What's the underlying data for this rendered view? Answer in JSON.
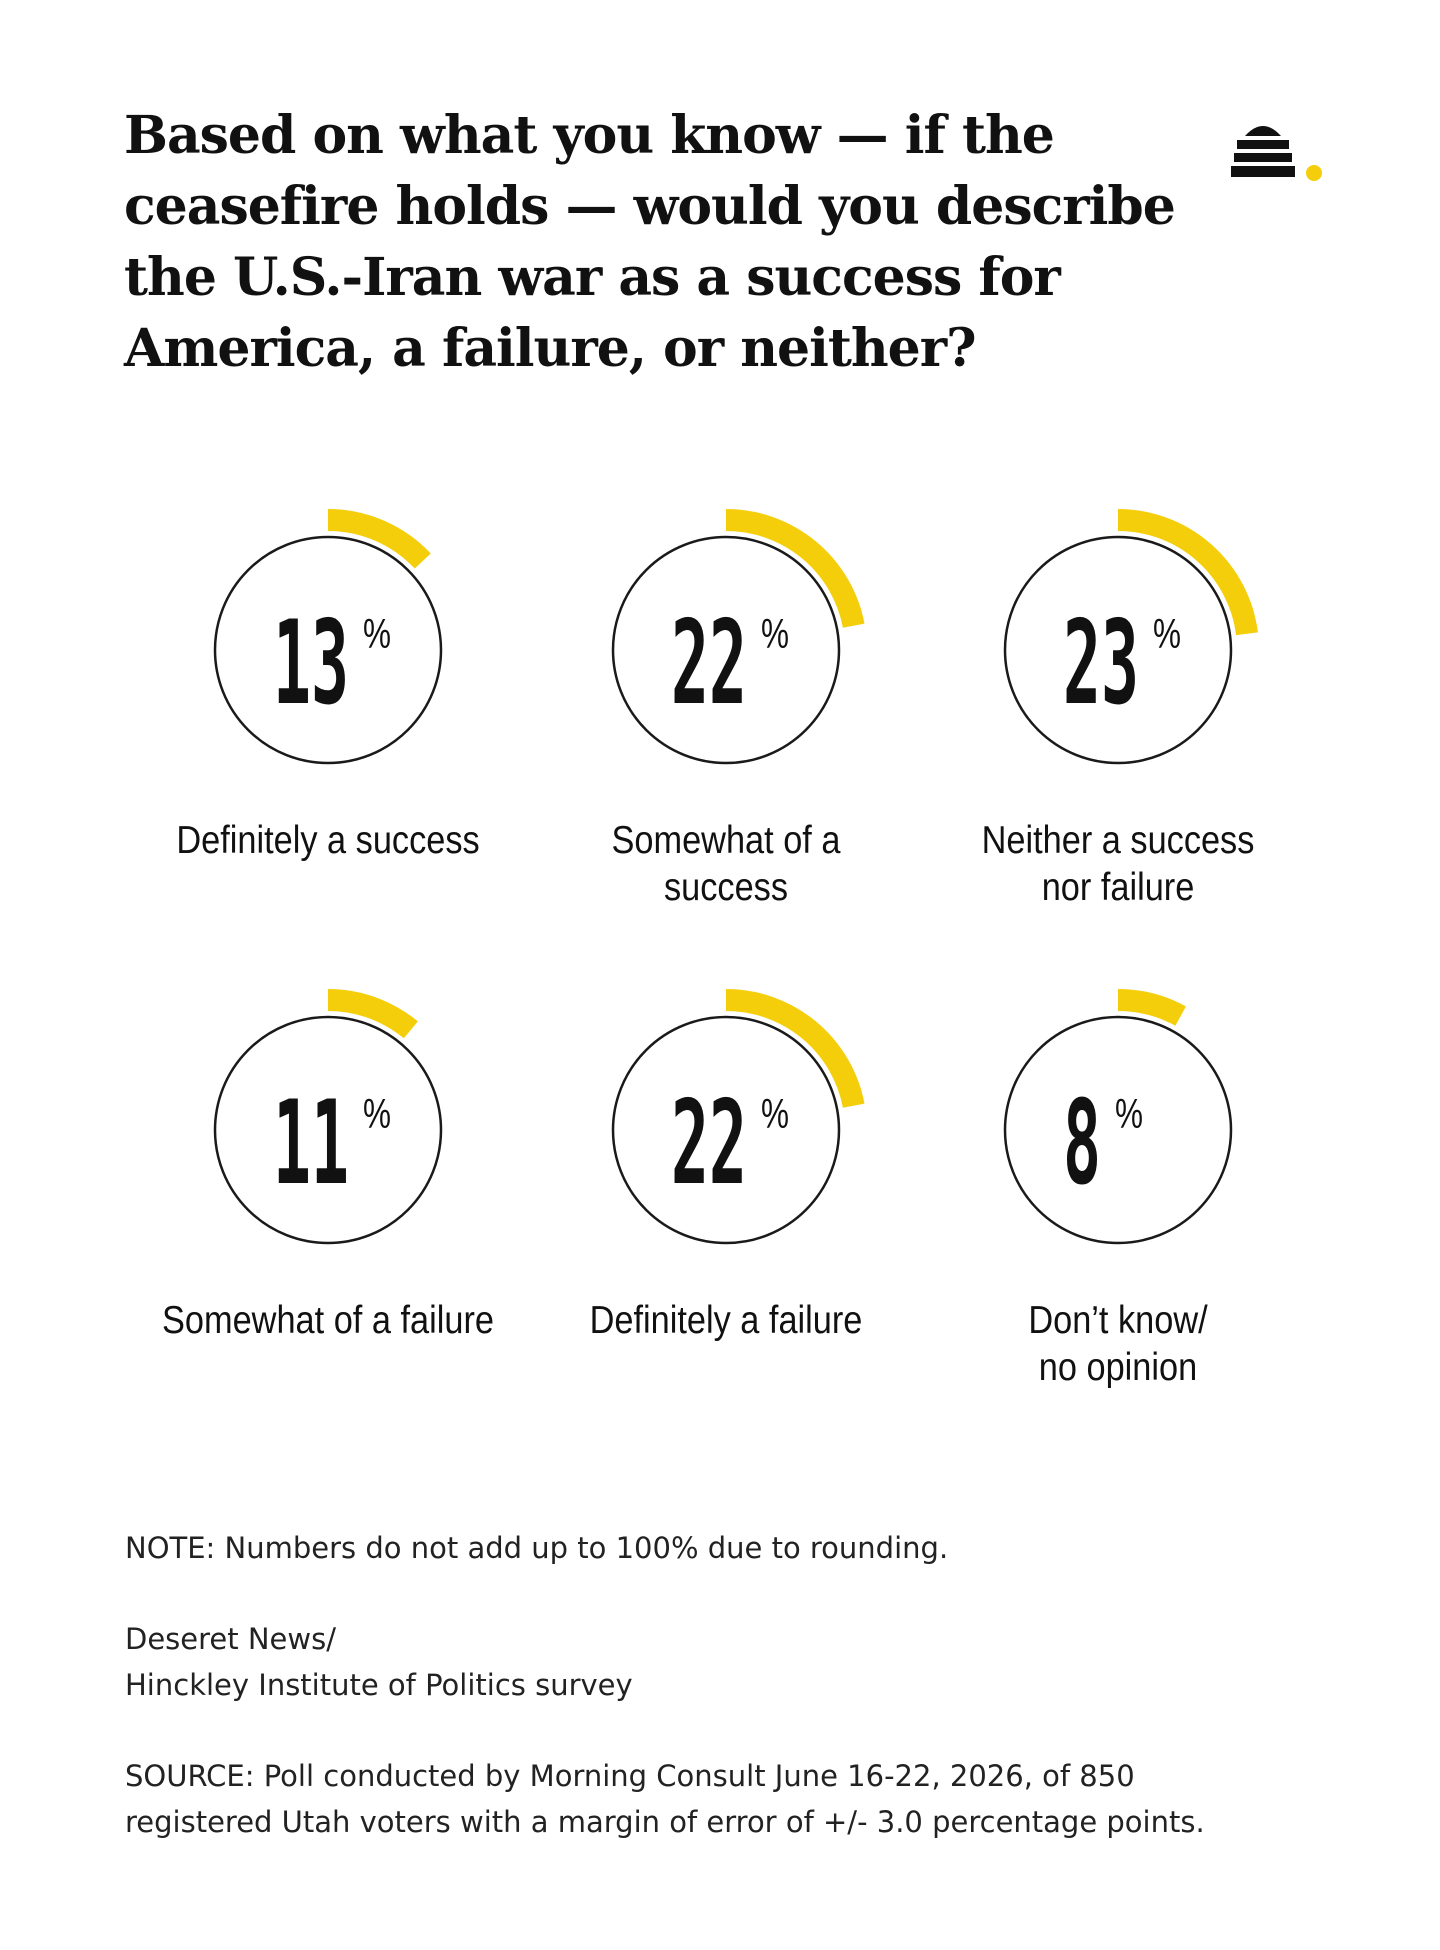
{
  "title": "Based on what you know — if the ceasefire holds — would you describe the U.S.-Iran war as a success for America, a failure, or neither?",
  "logo": {
    "icon": "beehive-icon",
    "dot_color": "#F5CE0B"
  },
  "colors": {
    "accent": "#F5CE0B",
    "ring": "#1a1a1a",
    "text": "#111111"
  },
  "chart_data": {
    "type": "radial-progress",
    "unit": "%",
    "categories": [
      "Definitely a success",
      "Somewhat of a success",
      "Neither a success nor failure",
      "Somewhat of a failure",
      "Definitely a failure",
      "Don’t know/ no opinion"
    ],
    "values": [
      13,
      22,
      23,
      11,
      22,
      8
    ],
    "scale_max": 100
  },
  "footer": {
    "note": "NOTE: Numbers do not add up to 100% due to rounding.",
    "credit_line1": "Deseret News/",
    "credit_line2": "Hinckley Institute of Politics survey",
    "source_line1": "SOURCE: Poll conducted by Morning Consult June 16-22, 2026, of 850",
    "source_line2": "registered Utah voters with a margin of error of +/- 3.0 percentage points."
  }
}
